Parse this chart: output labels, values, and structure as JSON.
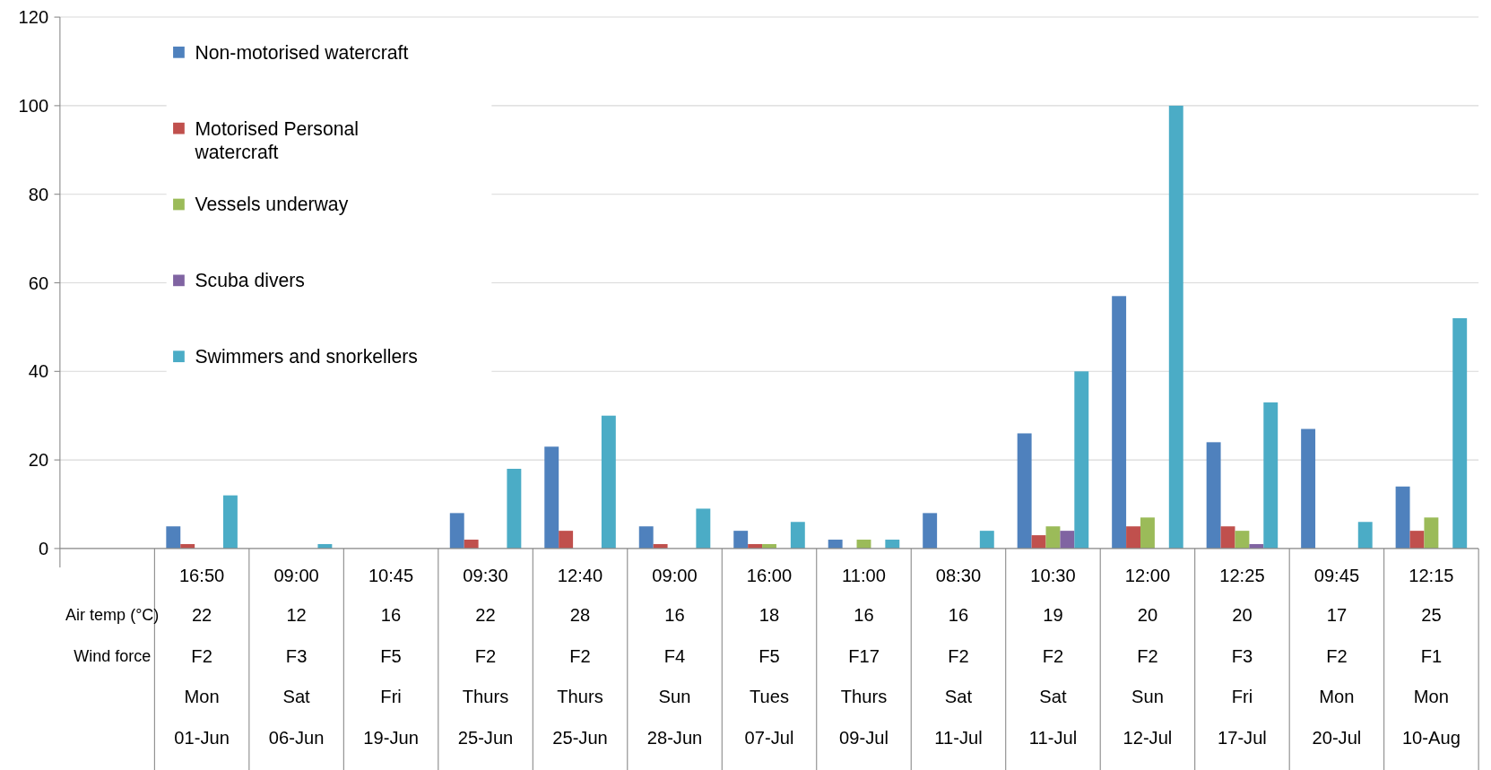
{
  "chart_data": {
    "type": "bar",
    "categories": [
      "\nAir temp (°C)\nWind force",
      "16:50\n22\nF2\nMon\n01-Jun",
      "09:00\n12\nF3\nSat\n06-Jun",
      "10:45\n16\nF5\nFri\n19-Jun",
      "09:30\n22\nF2\nThurs\n25-Jun",
      "12:40\n28\nF2\nThurs\n25-Jun",
      "09:00\n16\nF4\nSun\n28-Jun",
      "16:00\n18\nF5\nTues\n07-Jul",
      "11:00\n16\nF17\nThurs\n09-Jul",
      "08:30\n16\nF2\nSat\n11-Jul",
      "10:30\n19\nF2\nSat\n11-Jul",
      "12:00\n20\nF2\nSun\n12-Jul",
      "12:25\n20\nF3\nFri\n17-Jul",
      "09:45\n17\nF2\nMon\n20-Jul",
      "12:15\n25\nF1\nMon\n10-Aug"
    ],
    "series": [
      {
        "name": "Non-motorised watercraft",
        "color": "#4f81bd",
        "values": [
          null,
          5,
          0,
          0,
          8,
          23,
          5,
          4,
          2,
          8,
          26,
          57,
          24,
          27,
          14
        ]
      },
      {
        "name": "Motorised Personal watercraft",
        "color": "#c0504d",
        "values": [
          null,
          1,
          0,
          0,
          2,
          4,
          1,
          1,
          0,
          0,
          3,
          5,
          5,
          0,
          4
        ]
      },
      {
        "name": "Vessels underway",
        "color": "#9bbb59",
        "values": [
          null,
          0,
          0,
          0,
          0,
          0,
          0,
          1,
          2,
          0,
          5,
          7,
          4,
          0,
          7
        ]
      },
      {
        "name": "Scuba divers",
        "color": "#8064a2",
        "values": [
          null,
          0,
          0,
          0,
          0,
          0,
          0,
          0,
          0,
          0,
          4,
          0,
          1,
          0,
          0
        ]
      },
      {
        "name": "Swimmers and snorkellers",
        "color": "#4bacc6",
        "values": [
          null,
          12,
          1,
          0,
          18,
          30,
          9,
          6,
          2,
          4,
          40,
          100,
          33,
          6,
          52
        ]
      }
    ],
    "ylim": [
      0,
      120
    ],
    "yticks": [
      0,
      20,
      40,
      60,
      80,
      100,
      120
    ],
    "grid": "y",
    "legend": "top left"
  }
}
